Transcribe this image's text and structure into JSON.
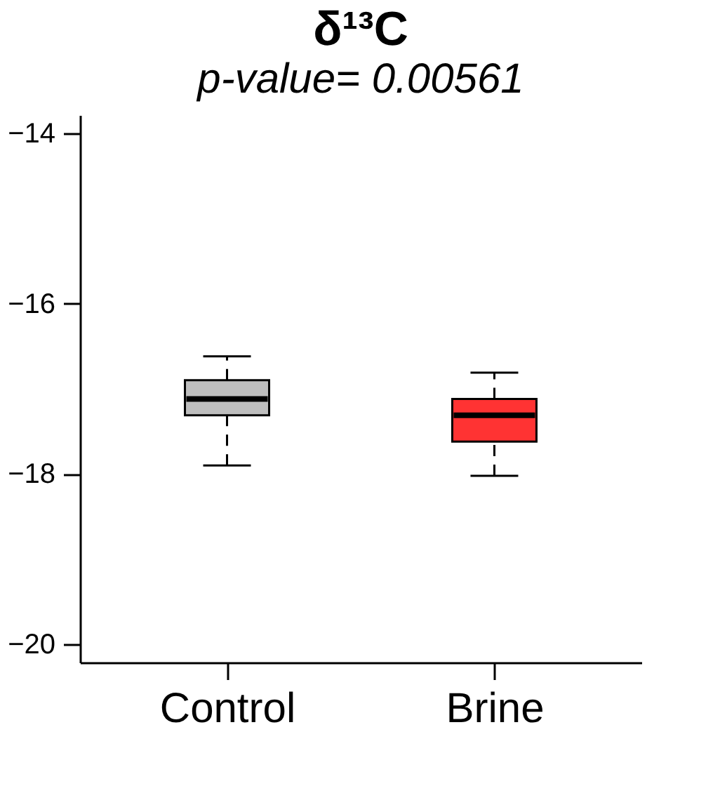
{
  "chart_data": {
    "type": "box",
    "title": "δ¹³C",
    "subtitle": "p-value= 0.00561",
    "categories": [
      "Control",
      "Brine"
    ],
    "colors": [
      "#bebebe",
      "#ff3333"
    ],
    "boxes": [
      {
        "low": -17.9,
        "q1": -17.31,
        "median": -17.12,
        "q3": -16.9,
        "high": -16.62
      },
      {
        "low": -18.02,
        "q1": -17.62,
        "median": -17.31,
        "q3": -17.12,
        "high": -16.81
      }
    ],
    "ylim": [
      -20.21,
      -13.79
    ],
    "yticks": [
      -20,
      -18,
      -16,
      -14
    ],
    "grid": false
  }
}
